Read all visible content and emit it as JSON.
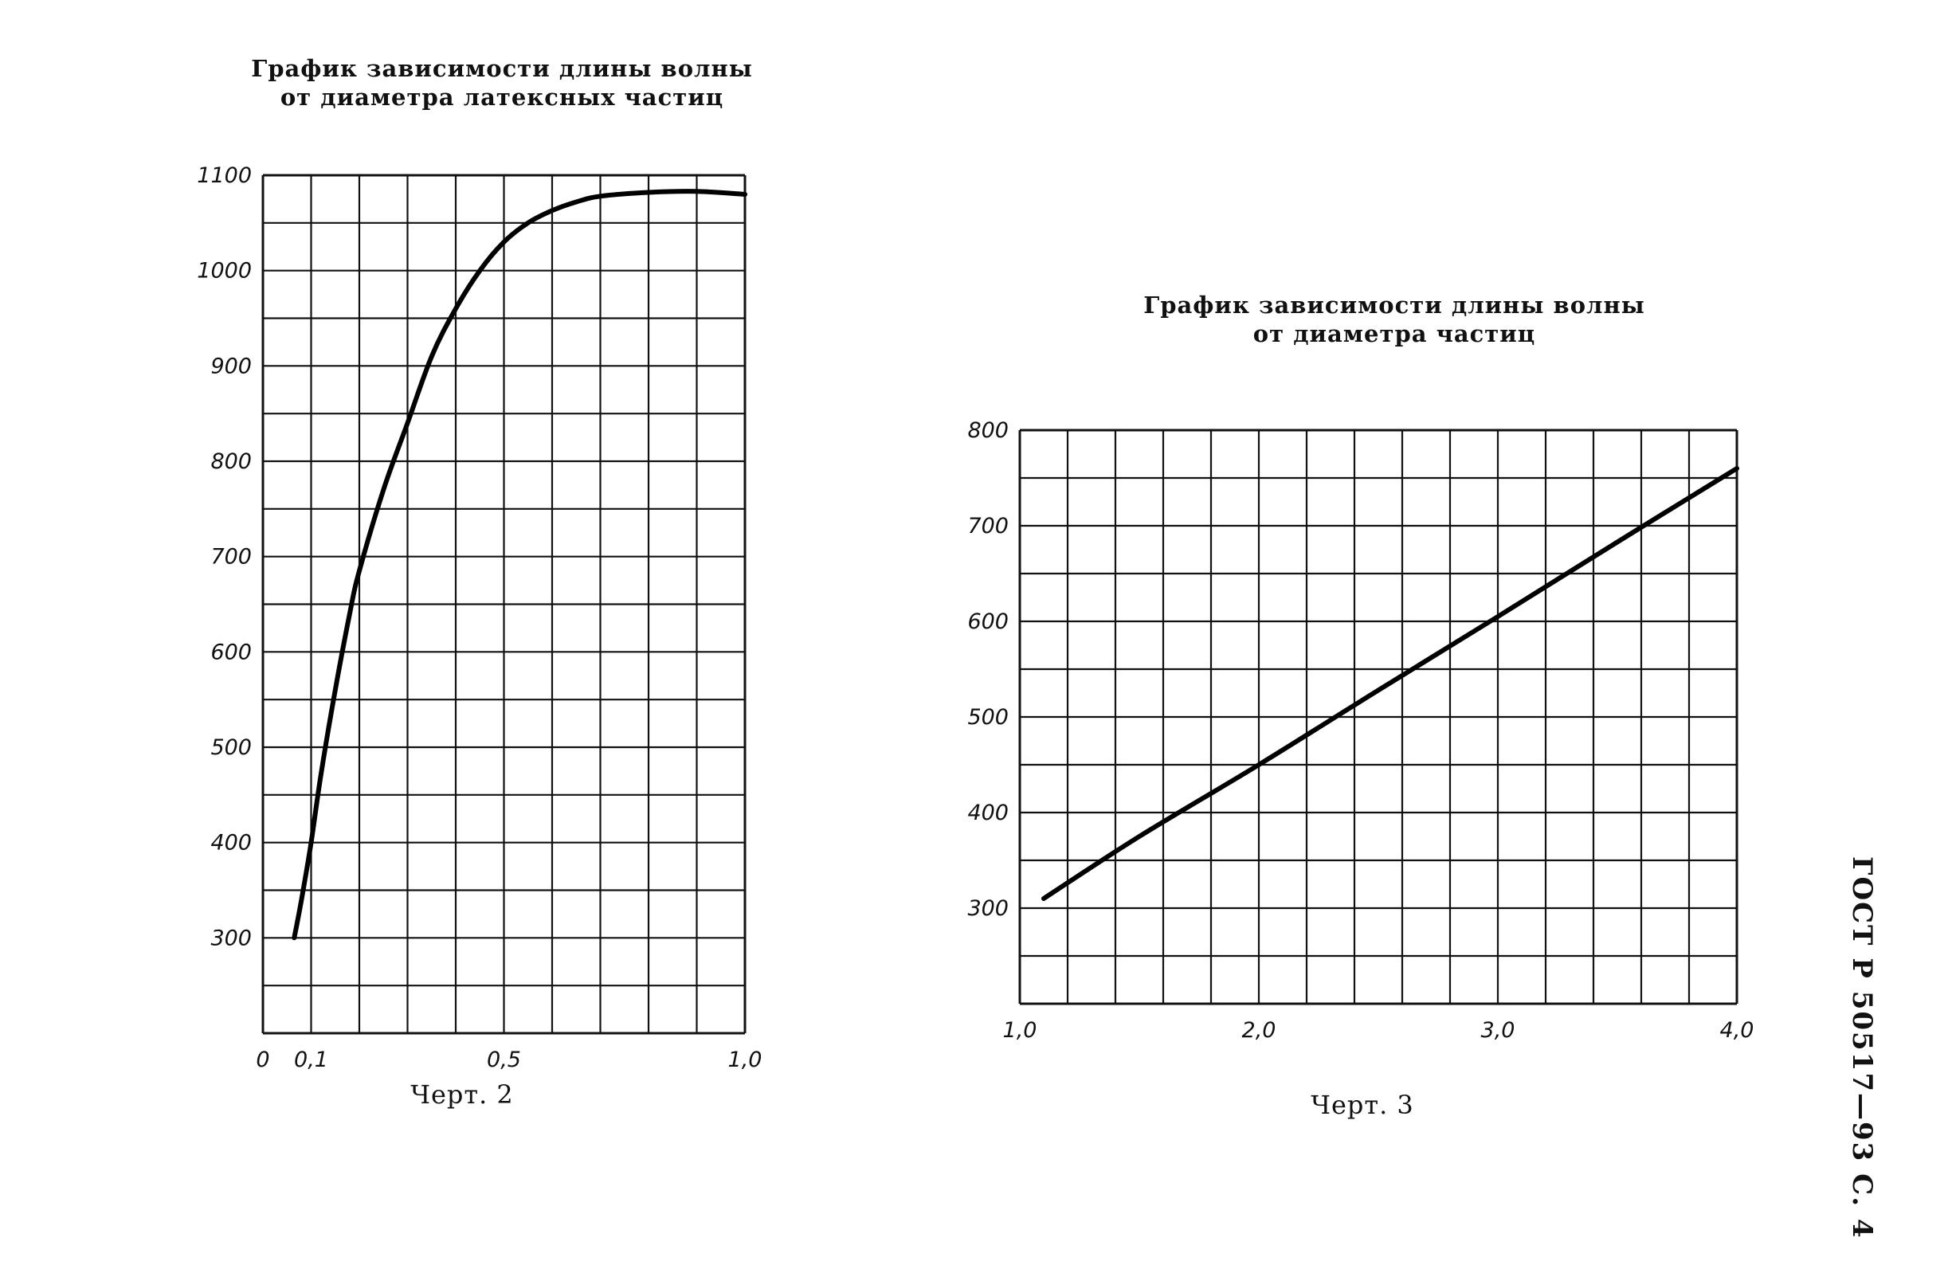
{
  "side_label": "ГОСТ Р 50517—93 С. 4",
  "chart_data": [
    {
      "type": "line",
      "title": "График зависимости длины волны от диаметра латексных частиц",
      "title_lines": [
        "График зависимости длины волны",
        "от диаметра латексных частиц"
      ],
      "caption": "Черт. 2",
      "xlabel": "",
      "ylabel": "",
      "xlim": [
        0,
        1.0
      ],
      "ylim": [
        200,
        1100
      ],
      "x_ticks": [
        0,
        0.1,
        0.5,
        1.0
      ],
      "x_tick_labels": [
        "0",
        "0,1",
        "0,5",
        "1,0"
      ],
      "y_ticks": [
        300,
        400,
        500,
        600,
        700,
        800,
        900,
        1000,
        1100
      ],
      "y_tick_labels": [
        "300",
        "400",
        "500",
        "600",
        "700",
        "800",
        "900",
        "1000",
        "1100"
      ],
      "grid": true,
      "grid_x_step": 0.1,
      "grid_y_step": 50,
      "series": [
        {
          "x": [
            0.065,
            0.08,
            0.1,
            0.12,
            0.15,
            0.18,
            0.2,
            0.25,
            0.3,
            0.35,
            0.4,
            0.45,
            0.5,
            0.55,
            0.6,
            0.65,
            0.7,
            0.8,
            0.9,
            1.0
          ],
          "y": [
            300,
            340,
            400,
            470,
            560,
            640,
            685,
            770,
            840,
            910,
            960,
            1000,
            1030,
            1050,
            1063,
            1072,
            1078,
            1082,
            1083,
            1080
          ]
        }
      ]
    },
    {
      "type": "line",
      "title": "График зависимости длины волны от диаметра частиц",
      "title_lines": [
        "График зависимости длины волны",
        "от диаметра частиц"
      ],
      "caption": "Черт. 3",
      "xlabel": "",
      "ylabel": "",
      "xlim": [
        1.0,
        4.0
      ],
      "ylim": [
        200,
        800
      ],
      "x_ticks": [
        1.0,
        2.0,
        3.0,
        4.0
      ],
      "x_tick_labels": [
        "1,0",
        "2,0",
        "3,0",
        "4,0"
      ],
      "y_ticks": [
        300,
        400,
        500,
        600,
        700,
        800
      ],
      "y_tick_labels": [
        "300",
        "400",
        "500",
        "600",
        "700",
        "800"
      ],
      "grid": true,
      "grid_x_step": 0.2,
      "grid_y_step": 50,
      "series": [
        {
          "x": [
            1.1,
            1.5,
            2.0,
            2.5,
            3.0,
            3.5,
            4.0
          ],
          "y": [
            310,
            375,
            450,
            528,
            605,
            683,
            760
          ]
        }
      ]
    }
  ]
}
